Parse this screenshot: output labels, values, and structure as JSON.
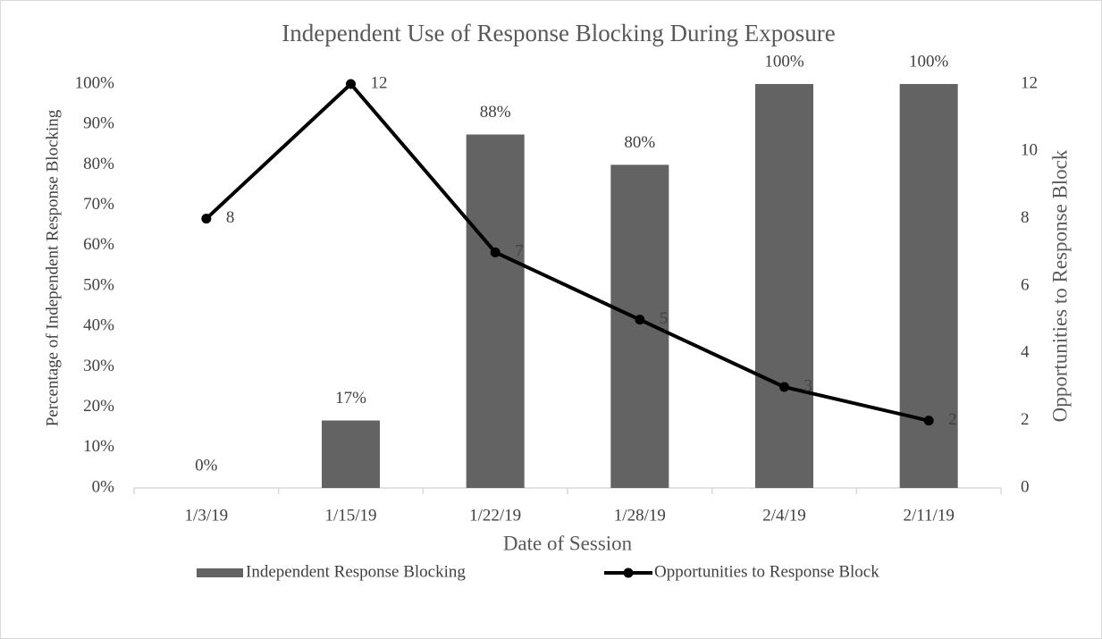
{
  "chart_data": {
    "type": "bar",
    "title": "Independent Use of Response Blocking During Exposure",
    "xlabel": "Date of Session",
    "ylabel": "Percentage of Independent Response Blocking",
    "y2label": "Opportunities to Response Block",
    "categories": [
      "1/3/19",
      "1/15/19",
      "1/22/19",
      "1/28/19",
      "2/4/19",
      "2/11/19"
    ],
    "series": [
      {
        "name": "Independent Response Blocking",
        "type": "bar",
        "color": "#636363",
        "values": [
          0,
          16.7,
          87.5,
          80,
          100,
          100
        ],
        "value_labels": [
          "0%",
          "17%",
          "88%",
          "80%",
          "100%",
          "100%"
        ]
      },
      {
        "name": "Opportunities to Response Block",
        "type": "line",
        "axis": "y2",
        "color": "#000000",
        "values": [
          8,
          12,
          7,
          5,
          3,
          2
        ]
      }
    ],
    "ylim": [
      0,
      100
    ],
    "yticks": [
      {
        "value": 0,
        "label": "0%"
      },
      {
        "value": 10,
        "label": "10%"
      },
      {
        "value": 20,
        "label": "20%"
      },
      {
        "value": 30,
        "label": "30%"
      },
      {
        "value": 40,
        "label": "40%"
      },
      {
        "value": 50,
        "label": "50%"
      },
      {
        "value": 60,
        "label": "60%"
      },
      {
        "value": 70,
        "label": "70%"
      },
      {
        "value": 80,
        "label": "80%"
      },
      {
        "value": 90,
        "label": "90%"
      },
      {
        "value": 100,
        "label": "100%"
      }
    ],
    "y2lim": [
      0,
      12
    ],
    "y2ticks": [
      0,
      2,
      4,
      6,
      8,
      10,
      12
    ],
    "legend": "bottom"
  }
}
